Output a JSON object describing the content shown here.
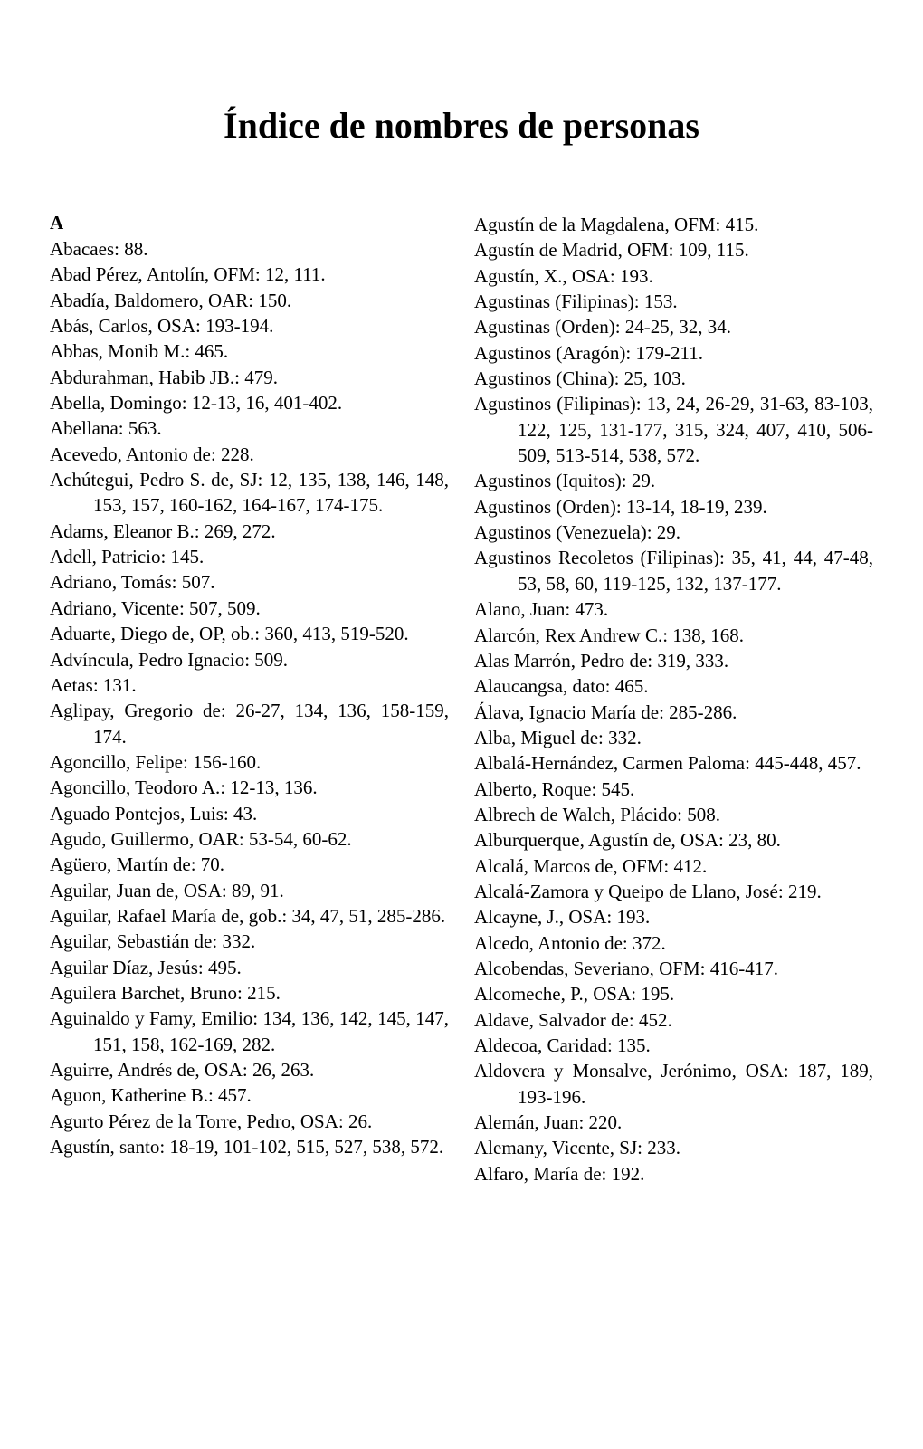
{
  "title": "Índice de nombres de personas",
  "left_column": {
    "section_header": "A",
    "entries": [
      "Abacaes: 88.",
      "Abad Pérez, Antolín, OFM: 12, 111.",
      "Abadía, Baldomero, OAR: 150.",
      "Abás, Carlos, OSA: 193-194.",
      "Abbas, Monib M.: 465.",
      "Abdurahman, Habib JB.: 479.",
      "Abella, Domingo: 12-13, 16, 401-402.",
      "Abellana: 563.",
      "Acevedo, Antonio de: 228.",
      "Achútegui, Pedro S. de, SJ: 12, 135, 138, 146, 148, 153, 157, 160-162, 164-167, 174-175.",
      "Adams, Eleanor B.: 269, 272.",
      "Adell, Patricio: 145.",
      "Adriano, Tomás: 507.",
      "Adriano, Vicente: 507, 509.",
      "Aduarte, Diego de, OP, ob.: 360, 413, 519-520.",
      "Advíncula, Pedro Ignacio: 509.",
      "Aetas: 131.",
      "Aglipay, Gregorio de: 26-27, 134, 136, 158-159, 174.",
      "Agoncillo, Felipe: 156-160.",
      "Agoncillo, Teodoro A.: 12-13, 136.",
      "Aguado Pontejos, Luis: 43.",
      "Agudo, Guillermo, OAR: 53-54, 60-62.",
      "Agüero, Martín de: 70.",
      "Aguilar, Juan de, OSA: 89, 91.",
      "Aguilar, Rafael María de, gob.: 34, 47, 51, 285-286.",
      "Aguilar, Sebastián de: 332.",
      "Aguilar Díaz, Jesús: 495.",
      "Aguilera Barchet, Bruno: 215.",
      "Aguinaldo y Famy, Emilio: 134, 136, 142, 145, 147, 151, 158, 162-169, 282.",
      "Aguirre, Andrés de, OSA: 26, 263.",
      "Aguon, Katherine B.: 457.",
      "Agurto Pérez de la Torre, Pedro, OSA: 26.",
      "Agustín, santo: 18-19, 101-102, 515, 527, 538, 572."
    ]
  },
  "right_column": {
    "entries": [
      "Agustín de la Magdalena, OFM: 415.",
      "Agustín de Madrid, OFM: 109, 115.",
      "Agustín, X., OSA: 193.",
      "Agustinas (Filipinas): 153.",
      "Agustinas (Orden): 24-25, 32, 34.",
      "Agustinos (Aragón): 179-211.",
      "Agustinos (China): 25, 103.",
      "Agustinos (Filipinas): 13, 24, 26-29, 31-63, 83-103, 122, 125, 131-177, 315, 324, 407, 410, 506-509, 513-514, 538, 572.",
      "Agustinos (Iquitos): 29.",
      "Agustinos (Orden): 13-14, 18-19, 239.",
      "Agustinos (Venezuela): 29.",
      "Agustinos Recoletos (Filipinas): 35, 41, 44, 47-48, 53, 58, 60, 119-125, 132, 137-177.",
      "Alano, Juan: 473.",
      "Alarcón, Rex Andrew C.: 138, 168.",
      "Alas Marrón, Pedro de: 319, 333.",
      "Alaucangsa, dato: 465.",
      "Álava, Ignacio María de: 285-286.",
      "Alba, Miguel de: 332.",
      "Albalá-Hernández, Carmen Paloma: 445-448, 457.",
      "Alberto, Roque: 545.",
      "Albrech de Walch, Plácido: 508.",
      "Alburquerque, Agustín de, OSA: 23, 80.",
      "Alcalá, Marcos de, OFM: 412.",
      "Alcalá-Zamora y Queipo de Llano, José: 219.",
      "Alcayne, J., OSA: 193.",
      "Alcedo, Antonio de: 372.",
      "Alcobendas, Severiano, OFM: 416-417.",
      "Alcomeche, P., OSA: 195.",
      "Aldave, Salvador de: 452.",
      "Aldecoa, Caridad: 135.",
      "Aldovera y Monsalve, Jerónimo, OSA: 187, 189, 193-196.",
      "Alemán, Juan: 220.",
      "Alemany, Vicente, SJ: 233.",
      "Alfaro, María de: 192."
    ]
  }
}
